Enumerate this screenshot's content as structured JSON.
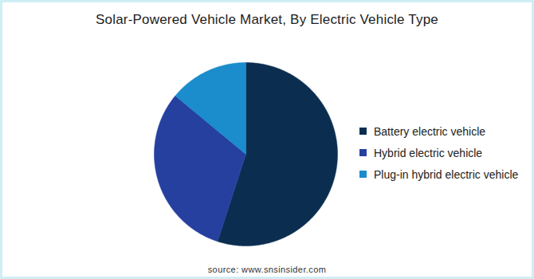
{
  "chart_data": {
    "type": "pie",
    "title": "Solar-Powered Vehicle Market, By Electric Vehicle Type",
    "categories": [
      "Battery electric vehicle",
      "Hybrid electric vehicle",
      "Plug-in hybrid electric vehicle"
    ],
    "values": [
      55,
      31,
      14
    ],
    "colors": [
      "#0b2e50",
      "#2640a0",
      "#1b8ccc"
    ],
    "caption": "source: www.snsinsider.com"
  }
}
